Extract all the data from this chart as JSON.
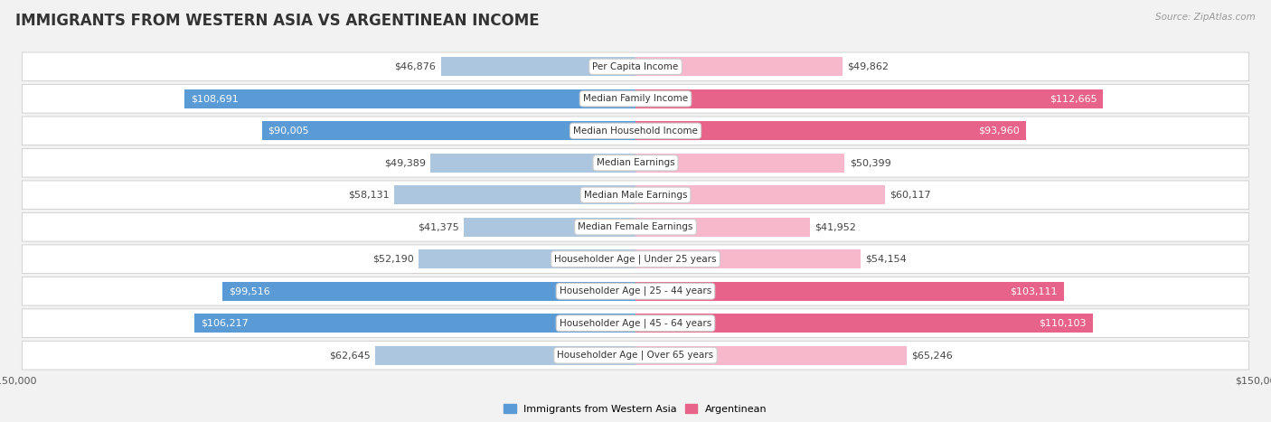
{
  "title": "IMMIGRANTS FROM WESTERN ASIA VS ARGENTINEAN INCOME",
  "source": "Source: ZipAtlas.com",
  "categories": [
    "Per Capita Income",
    "Median Family Income",
    "Median Household Income",
    "Median Earnings",
    "Median Male Earnings",
    "Median Female Earnings",
    "Householder Age | Under 25 years",
    "Householder Age | 25 - 44 years",
    "Householder Age | 45 - 64 years",
    "Householder Age | Over 65 years"
  ],
  "left_values": [
    46876,
    108691,
    90005,
    49389,
    58131,
    41375,
    52190,
    99516,
    106217,
    62645
  ],
  "right_values": [
    49862,
    112665,
    93960,
    50399,
    60117,
    41952,
    54154,
    103111,
    110103,
    65246
  ],
  "left_labels": [
    "$46,876",
    "$108,691",
    "$90,005",
    "$49,389",
    "$58,131",
    "$41,375",
    "$52,190",
    "$99,516",
    "$106,217",
    "$62,645"
  ],
  "right_labels": [
    "$49,862",
    "$112,665",
    "$93,960",
    "$50,399",
    "$60,117",
    "$41,952",
    "$54,154",
    "$103,111",
    "$110,103",
    "$65,246"
  ],
  "left_color_light": "#adc6e0",
  "left_color_dark": "#5b9bd5",
  "right_color_light": "#f7b8cc",
  "right_color_dark": "#e8638a",
  "max_value": 150000,
  "large_threshold": 70000,
  "legend_left": "Immigrants from Western Asia",
  "legend_right": "Argentinean",
  "bg_color": "#f2f2f2",
  "row_bg": "#ffffff",
  "title_fontsize": 12,
  "label_fontsize": 8,
  "cat_fontsize": 7.5,
  "tick_fontsize": 8,
  "source_fontsize": 7.5
}
